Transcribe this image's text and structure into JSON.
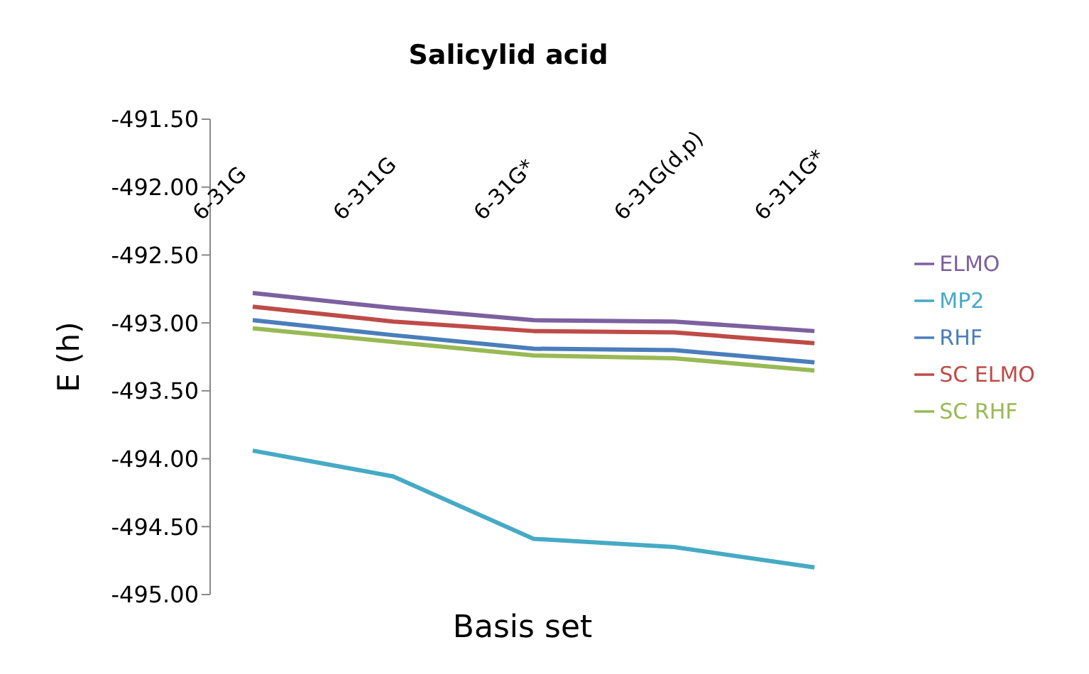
{
  "chart_data": {
    "type": "line",
    "title": "Salicylid acid",
    "xlabel": "Basis set",
    "ylabel": "E (h)",
    "categories": [
      "6-31G",
      "6-311G",
      "6-31G*",
      "6-31G(d,p)",
      "6-311G*"
    ],
    "series": [
      {
        "name": "RHF",
        "color": "#4a7ebb",
        "values": [
          -492.98,
          -493.09,
          -493.19,
          -493.2,
          -493.29
        ]
      },
      {
        "name": "SC RHF",
        "color": "#98b954",
        "values": [
          -493.04,
          -493.14,
          -493.24,
          -493.26,
          -493.35
        ]
      },
      {
        "name": "ELMO",
        "color": "#7d60a0",
        "values": [
          -492.78,
          -492.89,
          -492.98,
          -492.99,
          -493.06
        ]
      },
      {
        "name": "SC ELMO",
        "color": "#be4b48",
        "values": [
          -492.88,
          -492.99,
          -493.06,
          -493.07,
          -493.15
        ]
      },
      {
        "name": "MP2",
        "color": "#46aac5",
        "values": [
          -493.94,
          -494.13,
          -494.59,
          -494.65,
          -494.8
        ]
      }
    ],
    "ylim": [
      -495,
      -491.5
    ],
    "yticks": [
      {
        "value": -491.5,
        "label": "-491.50"
      },
      {
        "value": -492,
        "label": "-492.00"
      },
      {
        "value": -492.5,
        "label": "-492.50"
      },
      {
        "value": -493,
        "label": "-493.00"
      },
      {
        "value": -493.5,
        "label": "-493.50"
      },
      {
        "value": -494,
        "label": "-494.00"
      },
      {
        "value": -494.5,
        "label": "-494.50"
      },
      {
        "value": -495,
        "label": "-495.00"
      }
    ],
    "legend": "right",
    "marker": "none",
    "line_style": "solid"
  }
}
